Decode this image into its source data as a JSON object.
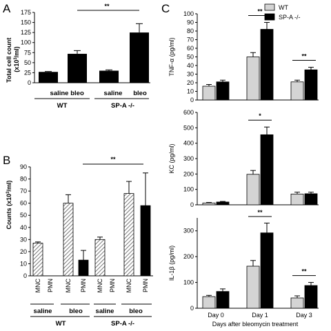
{
  "colors": {
    "light_gray": "#d4d4d4",
    "black": "#000000",
    "hatch": "striped-gray"
  },
  "chart_data": [
    {
      "panel": "A",
      "type": "bar",
      "ylabel": "Total cell count (x10^3/ml)",
      "ylabel_main": "Total cell count",
      "ylabel_unit": "(x10",
      "ylabel_sup": "3",
      "ylabel_unit_end": "/ml)",
      "ylim": [
        0,
        175
      ],
      "yticks": [
        "0",
        "25",
        "50",
        "75",
        "100",
        "125",
        "150",
        "175"
      ],
      "categories": [
        "saline",
        "bleo",
        "saline",
        "bleo"
      ],
      "groups": [
        "WT",
        "SP-A -/-"
      ],
      "values": [
        27,
        72,
        30,
        125
      ],
      "errors": [
        1,
        8,
        2,
        22
      ],
      "significance": "**"
    },
    {
      "panel": "B",
      "type": "bar",
      "ylabel": "Counts (x10^3/ml)",
      "ylabel_main": "Counts",
      "ylabel_unit": "(x10",
      "ylabel_sup": "3",
      "ylabel_unit_end": "/ml)",
      "ylim": [
        0,
        90
      ],
      "yticks": [
        "0",
        "10",
        "20",
        "30",
        "40",
        "50",
        "60",
        "70",
        "80",
        "90"
      ],
      "categories": [
        "MNC",
        "PMN",
        "MNC",
        "PMN",
        "MNC",
        "PMN",
        "MNC",
        "PMN"
      ],
      "treatments": [
        "saline",
        "bleo",
        "saline",
        "bleo"
      ],
      "groups": [
        "WT",
        "SP-A -/-"
      ],
      "values": [
        27,
        0,
        60,
        13,
        30,
        0,
        68,
        58
      ],
      "errors": [
        1,
        0,
        7,
        8,
        2,
        0,
        10,
        27
      ],
      "significance": "**"
    },
    {
      "panel": "C",
      "type": "bar",
      "xlabel": "Days after bleomycin treatment",
      "categories": [
        "Day 0",
        "Day 1",
        "Day 3"
      ],
      "legend": [
        "WT",
        "SP-A -/-"
      ],
      "subplots": [
        {
          "ylabel": "TNF-α (pg/ml)",
          "ylim": [
            0,
            100
          ],
          "yticks": [
            "0",
            "10",
            "20",
            "30",
            "40",
            "50",
            "60",
            "70",
            "80",
            "90",
            "100"
          ],
          "series": [
            {
              "name": "WT",
              "values": [
                16,
                50,
                21
              ],
              "errors": [
                2,
                5,
                2
              ]
            },
            {
              "name": "SP-A -/-",
              "values": [
                21,
                82,
                35
              ],
              "errors": [
                2,
                8,
                3
              ]
            }
          ],
          "significance": [
            "",
            "**",
            "**"
          ]
        },
        {
          "ylabel": "KC (pg/ml)",
          "ylim": [
            0,
            600
          ],
          "yticks": [
            "0",
            "100",
            "200",
            "300",
            "400",
            "500",
            "600"
          ],
          "series": [
            {
              "name": "WT",
              "values": [
                12,
                198,
                70
              ],
              "errors": [
                3,
                25,
                12
              ]
            },
            {
              "name": "SP-A -/-",
              "values": [
                18,
                455,
                72
              ],
              "errors": [
                4,
                50,
                10
              ]
            }
          ],
          "significance": [
            "",
            "*",
            ""
          ]
        },
        {
          "ylabel": "IL-1β (pg/ml)",
          "ylim": [
            0,
            350
          ],
          "yticks": [
            "0",
            "100",
            "200",
            "300"
          ],
          "series": [
            {
              "name": "WT",
              "values": [
                45,
                163,
                40
              ],
              "errors": [
                5,
                22,
                8
              ]
            },
            {
              "name": "SP-A -/-",
              "values": [
                65,
                292,
                88
              ],
              "errors": [
                10,
                38,
                12
              ]
            }
          ],
          "significance": [
            "",
            "**",
            "**"
          ]
        }
      ]
    }
  ]
}
